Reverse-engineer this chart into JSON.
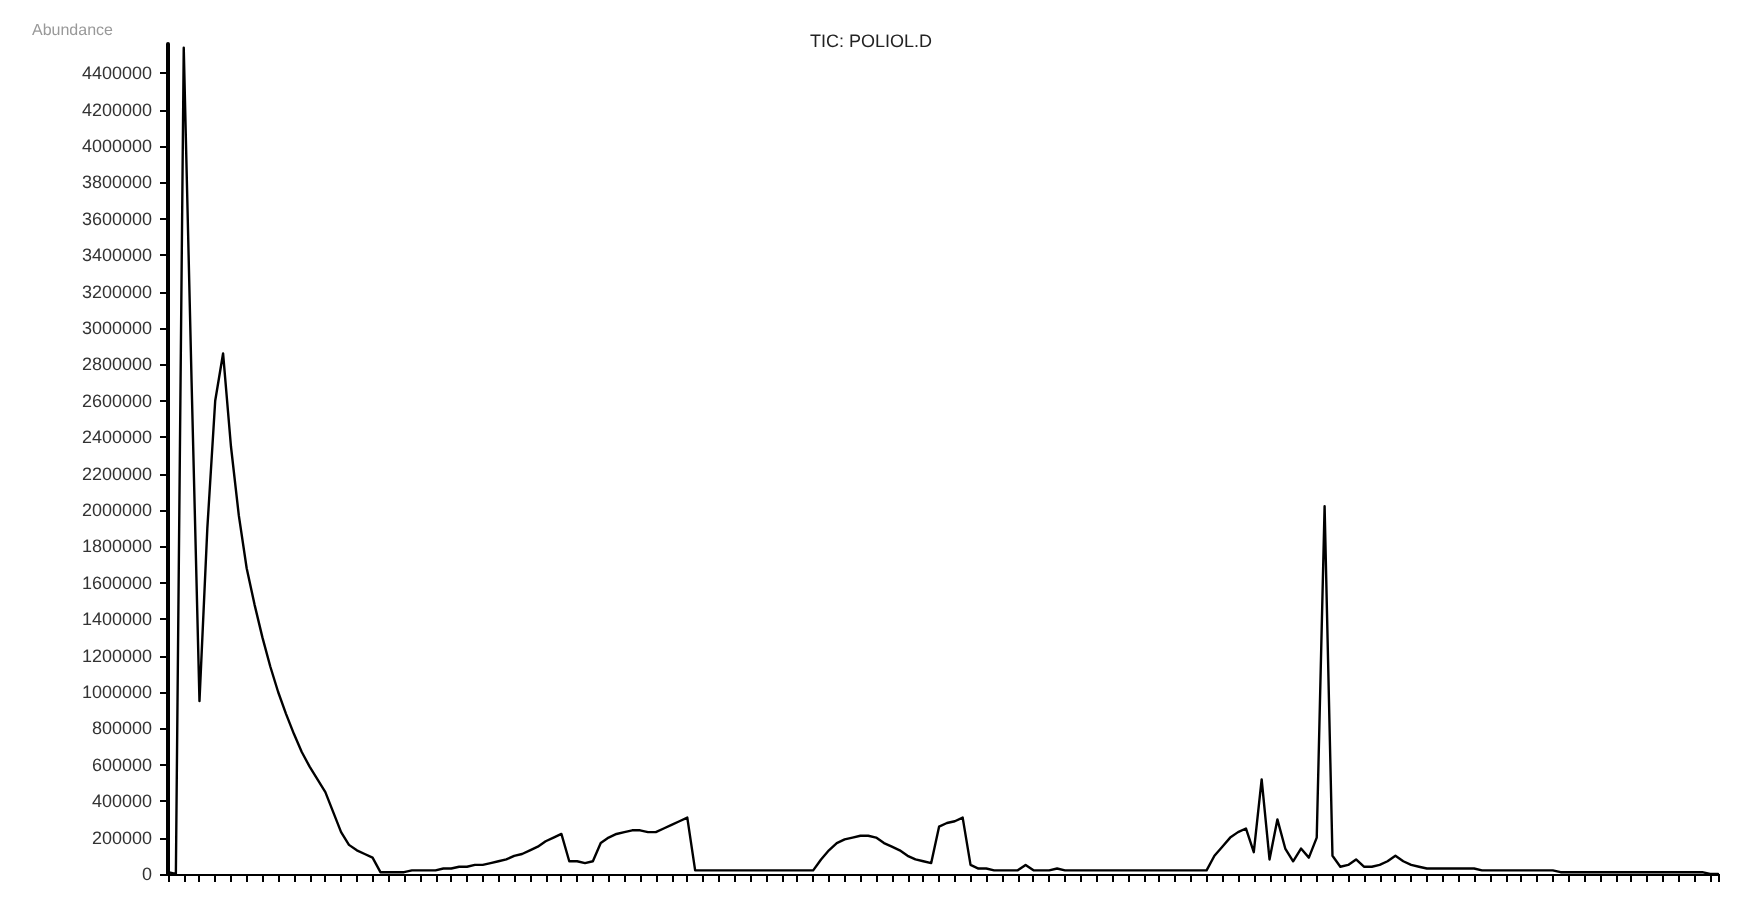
{
  "chart_data": {
    "type": "line",
    "title": "TIC: POLIOL.D",
    "ylabel": "Abundance",
    "categories": [
      null,
      null,
      null,
      null,
      null,
      null,
      null,
      null,
      null,
      null,
      null,
      null,
      null,
      null,
      null,
      null,
      null,
      null,
      null,
      null,
      null,
      null,
      null,
      null,
      null,
      null,
      null,
      null,
      null,
      null,
      null,
      null,
      null,
      null,
      null,
      null,
      null,
      null,
      null,
      null,
      null,
      null,
      null,
      null,
      null,
      null,
      null,
      null,
      null,
      null,
      null,
      null,
      null,
      null,
      null,
      null,
      null,
      null,
      null,
      null,
      null,
      null,
      null,
      null,
      null,
      null,
      null,
      null,
      null,
      null,
      null,
      null,
      null,
      null,
      null,
      null,
      null,
      null,
      null,
      null,
      null,
      null,
      null,
      null,
      null,
      null,
      null,
      null,
      null,
      null,
      null,
      null,
      null,
      null,
      null,
      null,
      null,
      null,
      null,
      null,
      null,
      null,
      null,
      null,
      null,
      null,
      null,
      null,
      null,
      null,
      null,
      null,
      null,
      null,
      null,
      null,
      null,
      null,
      null,
      null,
      null,
      null,
      null,
      null,
      null,
      null,
      null,
      null,
      null,
      null,
      null,
      null,
      null,
      null,
      null,
      null,
      null,
      null,
      null,
      null,
      null,
      null,
      null,
      null,
      null,
      null,
      null,
      null,
      null,
      null,
      null,
      null,
      null,
      null,
      null,
      null,
      null,
      null,
      null,
      null,
      null,
      null,
      null,
      null,
      null,
      null,
      null,
      null,
      null,
      null,
      null,
      null,
      null,
      null,
      null,
      null,
      null,
      null,
      null,
      null,
      null,
      null,
      null,
      null,
      null,
      null,
      null,
      null,
      null,
      null,
      null,
      null,
      null,
      null,
      null,
      null,
      null,
      null
    ],
    "series": [
      {
        "color": "#000000",
        "values": [
          10000,
          0,
          4540000,
          2700000,
          950000,
          1900000,
          2600000,
          2860000,
          2350000,
          1970000,
          1680000,
          1480000,
          1300000,
          1140000,
          1000000,
          880000,
          770000,
          670000,
          590000,
          520000,
          450000,
          340000,
          230000,
          160000,
          130000,
          110000,
          90000,
          10000,
          10000,
          10000,
          10000,
          20000,
          20000,
          20000,
          20000,
          30000,
          30000,
          40000,
          40000,
          50000,
          50000,
          60000,
          70000,
          80000,
          100000,
          110000,
          130000,
          150000,
          180000,
          200000,
          220000,
          70000,
          70000,
          60000,
          70000,
          170000,
          200000,
          220000,
          230000,
          240000,
          240000,
          230000,
          230000,
          250000,
          270000,
          290000,
          310000,
          20000,
          20000,
          20000,
          20000,
          20000,
          20000,
          20000,
          20000,
          20000,
          20000,
          20000,
          20000,
          20000,
          20000,
          20000,
          20000,
          80000,
          130000,
          170000,
          190000,
          200000,
          210000,
          210000,
          200000,
          170000,
          150000,
          130000,
          100000,
          80000,
          70000,
          60000,
          260000,
          280000,
          290000,
          310000,
          50000,
          30000,
          30000,
          20000,
          20000,
          20000,
          20000,
          50000,
          20000,
          20000,
          20000,
          30000,
          20000,
          20000,
          20000,
          20000,
          20000,
          20000,
          20000,
          20000,
          20000,
          20000,
          20000,
          20000,
          20000,
          20000,
          20000,
          20000,
          20000,
          20000,
          20000,
          100000,
          150000,
          200000,
          230000,
          250000,
          120000,
          520000,
          80000,
          300000,
          140000,
          70000,
          140000,
          90000,
          200000,
          2020000,
          100000,
          40000,
          50000,
          80000,
          40000,
          40000,
          50000,
          70000,
          100000,
          70000,
          50000,
          40000,
          30000,
          30000,
          30000,
          30000,
          30000,
          30000,
          30000,
          20000,
          20000,
          20000,
          20000,
          20000,
          20000,
          20000,
          20000,
          20000,
          20000,
          10000,
          10000,
          10000,
          10000,
          10000,
          10000,
          10000,
          10000,
          10000,
          10000,
          10000,
          10000,
          10000,
          10000,
          10000,
          10000,
          10000,
          10000,
          10000,
          0,
          0
        ]
      }
    ],
    "ylim": [
      0,
      4560000
    ],
    "yticks": [
      0,
      200000,
      400000,
      600000,
      800000,
      1000000,
      1200000,
      1400000,
      1600000,
      1800000,
      2000000,
      2200000,
      2400000,
      2600000,
      2800000,
      3000000,
      3200000,
      3400000,
      3600000,
      3800000,
      4000000,
      4200000,
      4400000
    ],
    "tick_labels": "y",
    "grid": false,
    "line_style": "solid"
  }
}
